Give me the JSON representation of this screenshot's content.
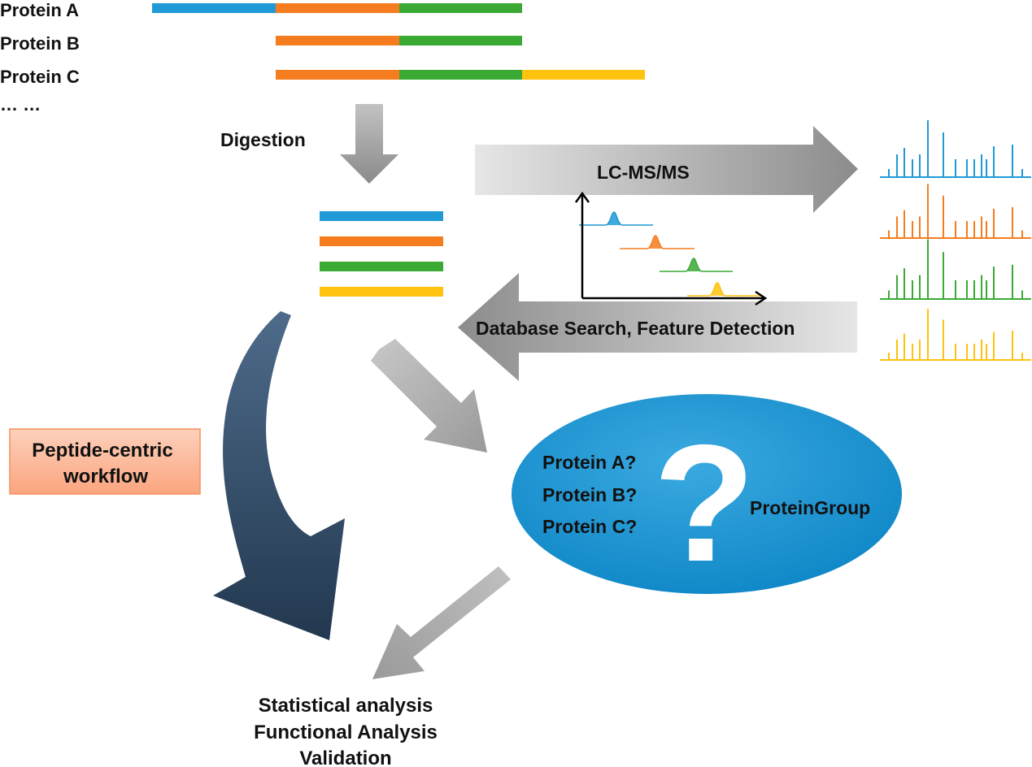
{
  "colors": {
    "blue": "#1f9ad6",
    "orange": "#f57c1f",
    "green": "#3aaa35",
    "yellow": "#ffc20e",
    "arrow_gray_dark": "#8c8c8c",
    "arrow_gray_light": "#e4e4e4",
    "navy_arrow": "#2b4664",
    "ellipse_blue": "#1595d3",
    "workflow_box": "#fbb191"
  },
  "proteins": [
    {
      "label": "Protein A",
      "segments": [
        "blue",
        "orange",
        "green"
      ]
    },
    {
      "label": "Protein B",
      "segments": [
        "orange",
        "green"
      ]
    },
    {
      "label": "Protein C",
      "segments": [
        "orange",
        "green",
        "yellow"
      ]
    }
  ],
  "ellipsis": "… …",
  "digestion_label": "Digestion",
  "peptides": [
    "blue",
    "orange",
    "green",
    "yellow"
  ],
  "lcms_label": "LC-MS/MS",
  "db_search_label": "Database Search, Feature Detection",
  "spectra_colors": [
    "blue",
    "orange",
    "green",
    "yellow"
  ],
  "chromatogram_peaks": [
    "blue",
    "orange",
    "green",
    "yellow"
  ],
  "workflow_label_line1": "Peptide-centric",
  "workflow_label_line2": "workflow",
  "inference": {
    "questions": [
      "Protein A?",
      "Protein B?",
      "Protein C?"
    ],
    "symbol": "?",
    "group_label": "ProteinGroup"
  },
  "outputs": [
    "Statistical analysis",
    "Functional Analysis",
    "Validation"
  ]
}
